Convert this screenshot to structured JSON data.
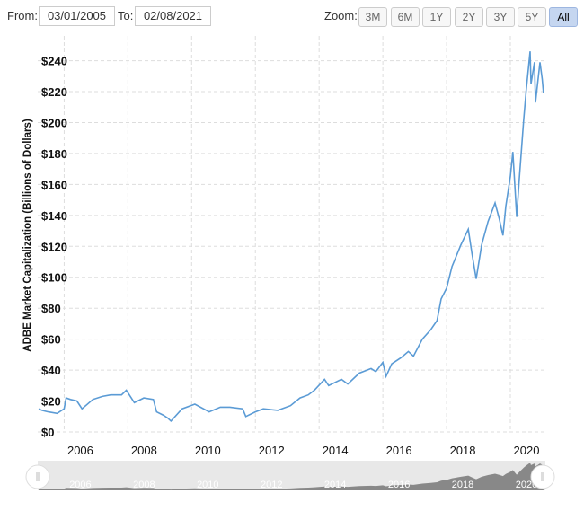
{
  "range_selector": {
    "from_label": "From:",
    "from_value": "03/01/2005",
    "to_label": "To:",
    "to_value": "02/08/2021",
    "zoom_label": "Zoom:",
    "zoom_buttons": [
      "3M",
      "6M",
      "1Y",
      "2Y",
      "3Y",
      "5Y",
      "All"
    ],
    "active_zoom": "All"
  },
  "chart_data": {
    "type": "line",
    "ylabel": "ADBE Market Capitalization (Billions of Dollars)",
    "xlabel": "",
    "xlim": [
      2005.17,
      2021.1
    ],
    "ylim": [
      0,
      256
    ],
    "grid": true,
    "line_color": "#5b9bd5",
    "y_ticks": [
      "$0",
      "$20",
      "$40",
      "$60",
      "$80",
      "$100",
      "$120",
      "$140",
      "$160",
      "$180",
      "$200",
      "$220",
      "$240"
    ],
    "y_tick_values": [
      0,
      20,
      40,
      60,
      80,
      100,
      120,
      140,
      160,
      180,
      200,
      220,
      240
    ],
    "x_ticks": [
      "2006",
      "2008",
      "2010",
      "2012",
      "2014",
      "2016",
      "2018",
      "2020"
    ],
    "x_tick_values": [
      2006,
      2008,
      2010,
      2012,
      2014,
      2016,
      2018,
      2020
    ],
    "x": [
      2005.2,
      2005.3,
      2005.5,
      2005.78,
      2006.0,
      2006.06,
      2006.2,
      2006.4,
      2006.56,
      2006.9,
      2007.2,
      2007.46,
      2007.8,
      2007.95,
      2008.2,
      2008.5,
      2008.8,
      2008.9,
      2009.1,
      2009.25,
      2009.35,
      2009.7,
      2010.1,
      2010.55,
      2010.9,
      2011.2,
      2011.6,
      2011.7,
      2012.0,
      2012.25,
      2012.7,
      2013.1,
      2013.4,
      2013.66,
      2013.85,
      2014.17,
      2014.3,
      2014.7,
      2014.9,
      2015.26,
      2015.63,
      2015.78,
      2016.0,
      2016.1,
      2016.28,
      2016.57,
      2016.8,
      2016.96,
      2017.24,
      2017.5,
      2017.7,
      2017.83,
      2018.0,
      2018.17,
      2018.45,
      2018.68,
      2018.8,
      2018.93,
      2019.1,
      2019.3,
      2019.52,
      2019.65,
      2019.77,
      2019.86,
      2020.0,
      2020.08,
      2020.2,
      2020.28,
      2020.42,
      2020.5,
      2020.62,
      2020.65,
      2020.76,
      2020.79,
      2020.93,
      2021.0,
      2021.04
    ],
    "y": [
      15,
      14,
      13,
      12,
      15,
      22,
      21,
      20,
      15,
      21,
      23,
      24,
      24,
      27,
      19,
      22,
      21,
      13,
      11,
      9,
      7,
      15,
      18,
      13,
      16,
      16,
      15,
      10,
      13,
      15,
      14,
      17,
      22,
      24,
      27,
      34,
      30,
      34,
      31,
      38,
      41,
      39,
      45,
      36,
      44,
      48,
      52,
      49,
      60,
      66,
      72,
      86,
      93,
      107,
      121,
      131,
      115,
      99,
      121,
      136,
      148,
      138,
      127,
      146,
      165,
      181,
      139,
      163,
      202,
      221,
      246,
      225,
      239,
      213,
      239,
      228,
      219
    ],
    "navigator": {
      "x_ticks": [
        "2006",
        "2008",
        "2010",
        "2012",
        "2014",
        "2016",
        "2018",
        "2020"
      ]
    }
  }
}
